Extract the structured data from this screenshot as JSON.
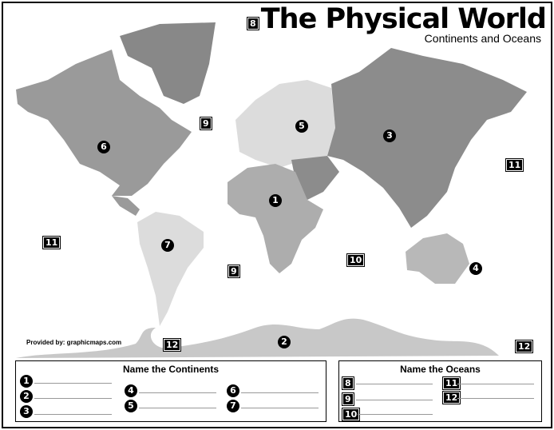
{
  "title": "The Physical World",
  "subtitle": "Continents and Oceans",
  "credit": "Provided by: graphicmaps.com",
  "map_labels": {
    "continents": [
      "1",
      "2",
      "3",
      "4",
      "5",
      "6",
      "7"
    ],
    "oceans": [
      "8",
      "9",
      "9",
      "10",
      "11",
      "11",
      "12",
      "12"
    ]
  },
  "continents_box": {
    "title": "Name the Continents",
    "numbers": [
      "1",
      "2",
      "3",
      "4",
      "5",
      "6",
      "7"
    ]
  },
  "oceans_box": {
    "title": "Name the Oceans",
    "numbers": [
      "8",
      "9",
      "10",
      "11",
      "12"
    ]
  },
  "colors": {
    "asia": "#8c8c8c",
    "north_america": "#9a9a9a",
    "africa": "#adadad",
    "europe": "#dcdcdc",
    "south_america": "#dcdcdc",
    "australia": "#b8b8b8",
    "antarctica": "#c8c8c8"
  }
}
